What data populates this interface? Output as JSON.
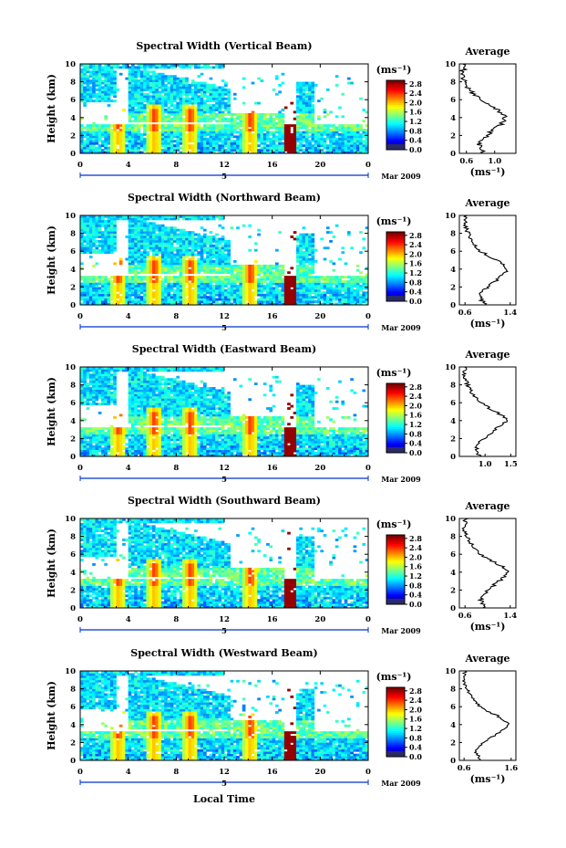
{
  "chart_data": [
    {
      "type": "heatmap",
      "title": "Spectral Width (Vertical Beam)",
      "ylabel": "Height (km)",
      "xlabel": "",
      "xlim": [
        0,
        24
      ],
      "ylim": [
        0,
        10
      ],
      "xticks": [
        "0",
        "4",
        "8",
        "12",
        "16",
        "20",
        "0"
      ],
      "yticks": [
        "0",
        "2",
        "4",
        "6",
        "8",
        "10"
      ],
      "date_mark": "5",
      "date_label": "Mar 2009",
      "colorbar": {
        "unit": "(ms⁻¹)",
        "labels": [
          "0.0",
          "0.4",
          "0.8",
          "1.2",
          "1.6",
          "2.0",
          "2.4",
          "2.8"
        ]
      },
      "average_profile": {
        "title": "Average",
        "xlabel": "(ms⁻¹)",
        "xticks": [
          "0.6",
          "1.0"
        ],
        "xlim": [
          0.5,
          1.3
        ],
        "x": [
          0.85,
          0.8,
          0.78,
          0.82,
          0.9,
          0.95,
          1.05,
          1.12,
          1.15,
          1.1,
          1.02,
          0.9,
          0.8,
          0.72,
          0.66,
          0.6,
          0.58,
          0.56,
          0.55,
          0.56,
          0.58
        ],
        "y": [
          0.0,
          0.5,
          1.0,
          1.5,
          2.0,
          2.5,
          3.0,
          3.5,
          4.0,
          4.5,
          5.0,
          5.5,
          6.0,
          6.5,
          7.0,
          7.5,
          8.0,
          8.5,
          9.0,
          9.5,
          10.0
        ]
      }
    },
    {
      "type": "heatmap",
      "title": "Spectral Width (Northward Beam)",
      "ylabel": "Height (km)",
      "xlabel": "",
      "xlim": [
        0,
        24
      ],
      "ylim": [
        0,
        10
      ],
      "xticks": [
        "0",
        "4",
        "8",
        "12",
        "16",
        "20",
        "0"
      ],
      "yticks": [
        "0",
        "2",
        "4",
        "6",
        "8",
        "10"
      ],
      "date_mark": "5",
      "date_label": "Mar 2009",
      "colorbar": {
        "unit": "(ms⁻¹)",
        "labels": [
          "0.0",
          "0.4",
          "0.8",
          "1.2",
          "1.6",
          "2.0",
          "2.4",
          "2.8"
        ]
      },
      "average_profile": {
        "title": "Average",
        "xlabel": "(ms⁻¹)",
        "xticks": [
          "0.6",
          "1.4"
        ],
        "xlim": [
          0.5,
          1.5
        ],
        "x": [
          0.95,
          0.9,
          0.85,
          0.9,
          1.0,
          1.1,
          1.2,
          1.3,
          1.35,
          1.28,
          1.15,
          1.0,
          0.88,
          0.8,
          0.74,
          0.7,
          0.66,
          0.62,
          0.6,
          0.6,
          0.62
        ],
        "y": [
          0.0,
          0.5,
          1.0,
          1.5,
          2.0,
          2.5,
          3.0,
          3.5,
          4.0,
          4.5,
          5.0,
          5.5,
          6.0,
          6.5,
          7.0,
          7.5,
          8.0,
          8.5,
          9.0,
          9.5,
          10.0
        ]
      }
    },
    {
      "type": "heatmap",
      "title": "Spectral Width (Eastward Beam)",
      "ylabel": "Height (km)",
      "xlabel": "",
      "xlim": [
        0,
        24
      ],
      "ylim": [
        0,
        10
      ],
      "xticks": [
        "0",
        "4",
        "8",
        "12",
        "16",
        "20",
        "0"
      ],
      "yticks": [
        "0",
        "2",
        "4",
        "6",
        "8",
        "10"
      ],
      "date_mark": "5",
      "date_label": "Mar 2009",
      "colorbar": {
        "unit": "(ms⁻¹)",
        "labels": [
          "0.0",
          "0.4",
          "0.8",
          "1.2",
          "1.6",
          "2.0",
          "2.4",
          "2.8"
        ]
      },
      "average_profile": {
        "title": "Average",
        "xlabel": "",
        "xticks": [
          "1.0",
          "1.5"
        ],
        "xlim": [
          0.5,
          1.6
        ],
        "x": [
          0.9,
          0.85,
          0.82,
          0.88,
          1.0,
          1.1,
          1.2,
          1.3,
          1.45,
          1.35,
          1.2,
          1.05,
          0.92,
          0.82,
          0.75,
          0.7,
          0.66,
          0.63,
          0.6,
          0.6,
          0.62
        ],
        "y": [
          0.0,
          0.5,
          1.0,
          1.5,
          2.0,
          2.5,
          3.0,
          3.5,
          4.0,
          4.5,
          5.0,
          5.5,
          6.0,
          6.5,
          7.0,
          7.5,
          8.0,
          8.5,
          9.0,
          9.5,
          10.0
        ]
      }
    },
    {
      "type": "heatmap",
      "title": "Spectral Width (Southward Beam)",
      "ylabel": "Height (km)",
      "xlabel": "",
      "xlim": [
        0,
        24
      ],
      "ylim": [
        0,
        10
      ],
      "xticks": [
        "0",
        "4",
        "8",
        "12",
        "16",
        "20",
        "0"
      ],
      "yticks": [
        "0",
        "2",
        "4",
        "6",
        "8",
        "10"
      ],
      "date_mark": "5",
      "date_label": "Mar 2009",
      "colorbar": {
        "unit": "(ms⁻¹)",
        "labels": [
          "0.0",
          "0.4",
          "0.8",
          "1.2",
          "1.6",
          "2.0",
          "2.4",
          "2.8"
        ]
      },
      "average_profile": {
        "title": "Average",
        "xlabel": "(ms⁻¹)",
        "xticks": [
          "0.6",
          "1.4"
        ],
        "xlim": [
          0.5,
          1.5
        ],
        "x": [
          0.95,
          0.9,
          0.88,
          0.92,
          1.0,
          1.1,
          1.2,
          1.3,
          1.38,
          1.3,
          1.15,
          1.0,
          0.88,
          0.78,
          0.72,
          0.68,
          0.64,
          0.6,
          0.58,
          0.6,
          0.62
        ],
        "y": [
          0.0,
          0.5,
          1.0,
          1.5,
          2.0,
          2.5,
          3.0,
          3.5,
          4.0,
          4.5,
          5.0,
          5.5,
          6.0,
          6.5,
          7.0,
          7.5,
          8.0,
          8.5,
          9.0,
          9.5,
          10.0
        ]
      }
    },
    {
      "type": "heatmap",
      "title": "Spectral Width (Westward Beam)",
      "ylabel": "Height (km)",
      "xlabel": "Local Time",
      "xlim": [
        0,
        24
      ],
      "ylim": [
        0,
        10
      ],
      "xticks": [
        "0",
        "4",
        "8",
        "12",
        "16",
        "20",
        "0"
      ],
      "yticks": [
        "0",
        "2",
        "4",
        "6",
        "8",
        "10"
      ],
      "date_mark": "5",
      "date_label": "Mar 2009",
      "colorbar": {
        "unit": "(ms⁻¹)",
        "labels": [
          "0.0",
          "0.4",
          "0.8",
          "1.2",
          "1.6",
          "2.0",
          "2.4",
          "2.8"
        ]
      },
      "average_profile": {
        "title": "Average",
        "xlabel": "(ms⁻¹)",
        "xticks": [
          "0.6",
          "1.6"
        ],
        "xlim": [
          0.5,
          1.7
        ],
        "x": [
          0.95,
          0.9,
          0.85,
          0.9,
          1.0,
          1.15,
          1.3,
          1.45,
          1.55,
          1.45,
          1.3,
          1.1,
          0.95,
          0.85,
          0.76,
          0.7,
          0.66,
          0.62,
          0.6,
          0.6,
          0.62
        ],
        "y": [
          0.0,
          0.5,
          1.0,
          1.5,
          2.0,
          2.5,
          3.0,
          3.5,
          4.0,
          4.5,
          5.0,
          5.5,
          6.0,
          6.5,
          7.0,
          7.5,
          8.0,
          8.5,
          9.0,
          9.5,
          10.0
        ]
      }
    }
  ]
}
